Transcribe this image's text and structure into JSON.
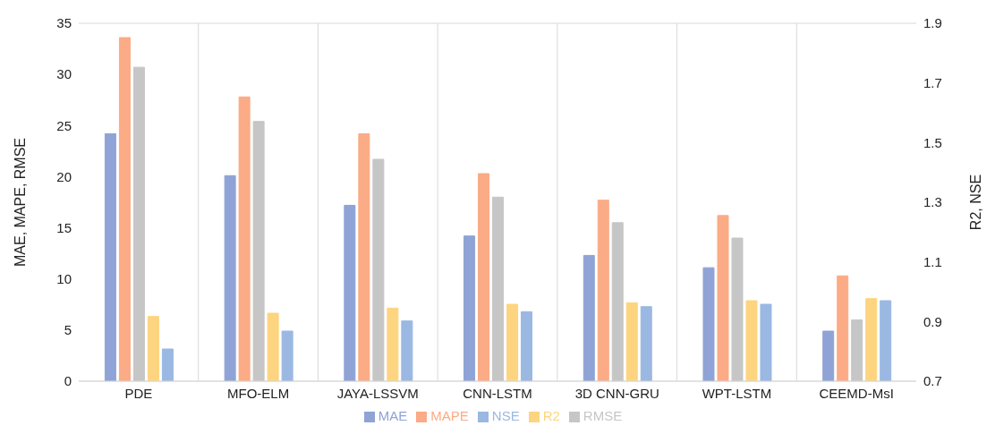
{
  "chart_data": {
    "type": "bar",
    "categories": [
      "PDE",
      "MFO-ELM",
      "JAYA-LSSVM",
      "CNN-LSTM",
      "3D CNN-GRU",
      "WPT-LSTM",
      "CEEMD-MsI"
    ],
    "series": [
      {
        "name": "MAE",
        "color": "#8fa3d6",
        "values": [
          24.2,
          20.1,
          17.2,
          14.2,
          12.3,
          11.1,
          4.9
        ]
      },
      {
        "name": "MAPE",
        "color": "#fbab85",
        "values": [
          33.6,
          27.8,
          24.2,
          20.3,
          17.7,
          16.2,
          10.3
        ]
      },
      {
        "name": "RMSE",
        "color": "#c6c6c6",
        "values": [
          30.7,
          25.4,
          21.7,
          18,
          15.5,
          14,
          6
        ]
      },
      {
        "name": "R2",
        "color": "#fdd47f",
        "axis": "y2",
        "values": [
          0.917,
          0.928,
          0.945,
          0.958,
          0.963,
          0.97,
          0.977
        ]
      },
      {
        "name": "NSE",
        "color": "#9ab8e2",
        "axis": "y2",
        "values": [
          0.808,
          0.868,
          0.902,
          0.933,
          0.95,
          0.958,
          0.97
        ]
      }
    ],
    "ylabel": "MAE, MAPE, RMSE",
    "y2label": "R2, NSE",
    "ylim": [
      0,
      35
    ],
    "yticks": [
      0,
      5,
      10,
      15,
      20,
      25,
      30,
      35
    ],
    "y2lim": [
      0.7,
      1.9
    ],
    "y2ticks": [
      0.7,
      0.9,
      1.1,
      1.3,
      1.5,
      1.7,
      1.9
    ],
    "grid": true,
    "legend": "bottom"
  }
}
